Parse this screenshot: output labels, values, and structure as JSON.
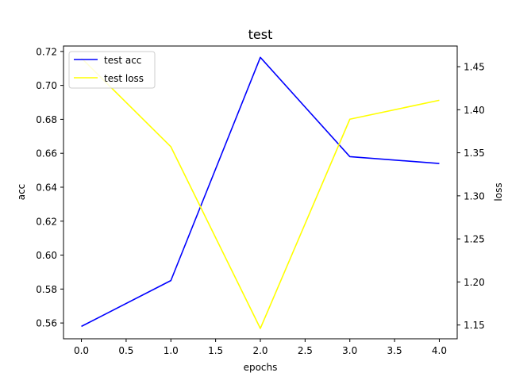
{
  "chart_data": {
    "type": "line",
    "title": "test",
    "xlabel": "epochs",
    "ylabel_left": "acc",
    "ylabel_right": "loss",
    "x": [
      0,
      1,
      2,
      3,
      4
    ],
    "xlim": [
      -0.2,
      4.2
    ],
    "ylim_left": [
      0.5507,
      0.7232
    ],
    "ylim_right": [
      1.134,
      1.474
    ],
    "xticks": [
      0.0,
      0.5,
      1.0,
      1.5,
      2.0,
      2.5,
      3.0,
      3.5,
      4.0
    ],
    "xtick_labels": [
      "0.0",
      "0.5",
      "1.0",
      "1.5",
      "2.0",
      "2.5",
      "3.0",
      "3.5",
      "4.0"
    ],
    "yticks_left": [
      0.56,
      0.58,
      0.6,
      0.62,
      0.64,
      0.66,
      0.68,
      0.7,
      0.72
    ],
    "ytick_labels_left": [
      "0.56",
      "0.58",
      "0.60",
      "0.62",
      "0.64",
      "0.66",
      "0.68",
      "0.70",
      "0.72"
    ],
    "yticks_right": [
      1.15,
      1.2,
      1.25,
      1.3,
      1.35,
      1.4,
      1.45
    ],
    "ytick_labels_right": [
      "1.15",
      "1.20",
      "1.25",
      "1.30",
      "1.35",
      "1.40",
      "1.45"
    ],
    "grid": false,
    "legend_placement": "upper-left",
    "series": [
      {
        "name": "test acc",
        "axis": "left",
        "color": "#0000ff",
        "values": [
          0.558,
          0.585,
          0.7165,
          0.658,
          0.654
        ]
      },
      {
        "name": "test loss",
        "axis": "right",
        "color": "#ffff00",
        "values": [
          1.46,
          1.357,
          1.146,
          1.389,
          1.411
        ]
      }
    ]
  }
}
